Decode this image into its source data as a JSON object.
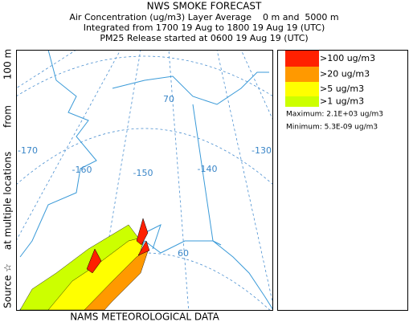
{
  "header": {
    "title": "NWS SMOKE FORECAST",
    "lines": [
      "Air Concentration (ug/m3) Layer Average    0 m and  5000 m",
      "Integrated from 1700 19 Aug to 1800 19 Aug 19 (UTC)",
      "PM25 Release started at 0600 19 Aug 19 (UTC)"
    ]
  },
  "side_label": [
    "Source ☆",
    "at multiple locations",
    "from",
    "100 m"
  ],
  "footer": "NAMS METEOROLOGICAL DATA",
  "map": {
    "longitude_labels": [
      "-170",
      "-160",
      "-150",
      "-140",
      "-130"
    ],
    "latitude_labels": [
      "70",
      "60"
    ]
  },
  "legend": {
    "entries": [
      {
        "label": ">100 ug/m3",
        "color": "#ff2000"
      },
      {
        "label": ">20 ug/m3",
        "color": "#ff9900"
      },
      {
        "label": ">5 ug/m3",
        "color": "#ffff00"
      },
      {
        "label": ">1 ug/m3",
        "color": "#ccff00"
      }
    ],
    "maximum": "Maximum: 2.1E+03 ug/m3",
    "minimum": "Minimum: 5.3E-09 ug/m3"
  }
}
